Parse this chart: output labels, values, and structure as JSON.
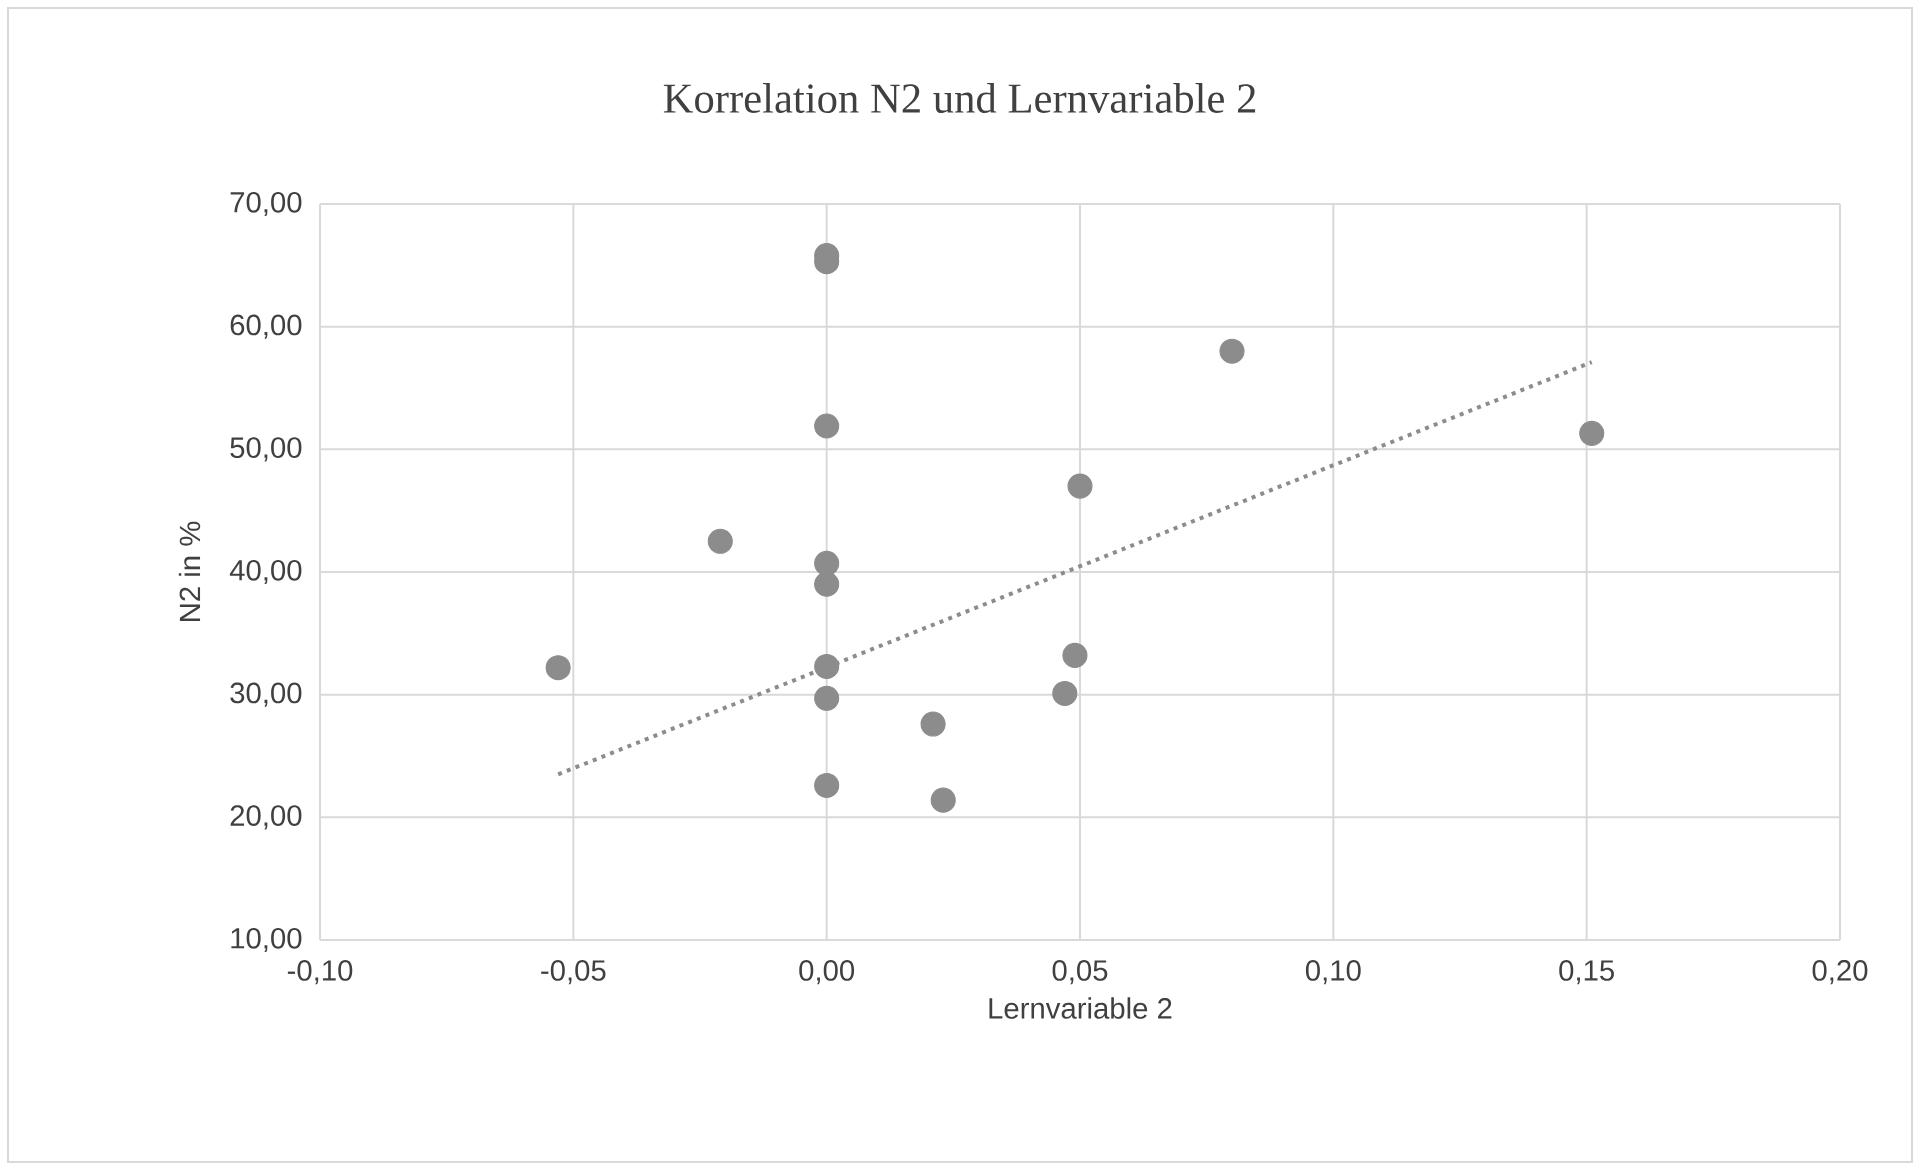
{
  "chart_data": {
    "type": "scatter",
    "title": "Korrelation N2 und Lernvariable 2",
    "xlabel": "Lernvariable 2",
    "ylabel": "N2 in %",
    "xlim": [
      -0.1,
      0.2
    ],
    "ylim": [
      10,
      70
    ],
    "xticks": [
      {
        "value": -0.1,
        "label": "-0,10"
      },
      {
        "value": -0.05,
        "label": "-0,05"
      },
      {
        "value": 0,
        "label": "0,00"
      },
      {
        "value": 0.05,
        "label": "0,05"
      },
      {
        "value": 0.1,
        "label": "0,10"
      },
      {
        "value": 0.15,
        "label": "0,15"
      },
      {
        "value": 0.2,
        "label": "0,20"
      }
    ],
    "yticks": [
      {
        "value": 10,
        "label": "10,00"
      },
      {
        "value": 20,
        "label": "20,00"
      },
      {
        "value": 30,
        "label": "30,00"
      },
      {
        "value": 40,
        "label": "40,00"
      },
      {
        "value": 50,
        "label": "50,00"
      },
      {
        "value": 60,
        "label": "60,00"
      },
      {
        "value": 70,
        "label": "70,00"
      }
    ],
    "grid": true,
    "series": [
      {
        "type": "scatter",
        "marker": "circle",
        "color": "#8c8c8c",
        "x": [
          0,
          0,
          0,
          0,
          0,
          0,
          0,
          0,
          -0.053,
          -0.021,
          0.021,
          0.023,
          0.047,
          0.049,
          0.05,
          0.08,
          0.151
        ],
        "values": [
          65.8,
          65.3,
          51.9,
          40.7,
          39.0,
          32.3,
          29.7,
          22.6,
          32.2,
          42.5,
          27.6,
          21.4,
          30.1,
          33.2,
          47.0,
          58.0,
          51.3
        ]
      },
      {
        "type": "line",
        "marker": "none",
        "line_style": "dotted",
        "color": "#8c8c8c",
        "x": [
          -0.053,
          0.151
        ],
        "values": [
          23.5,
          57.1
        ]
      }
    ]
  }
}
